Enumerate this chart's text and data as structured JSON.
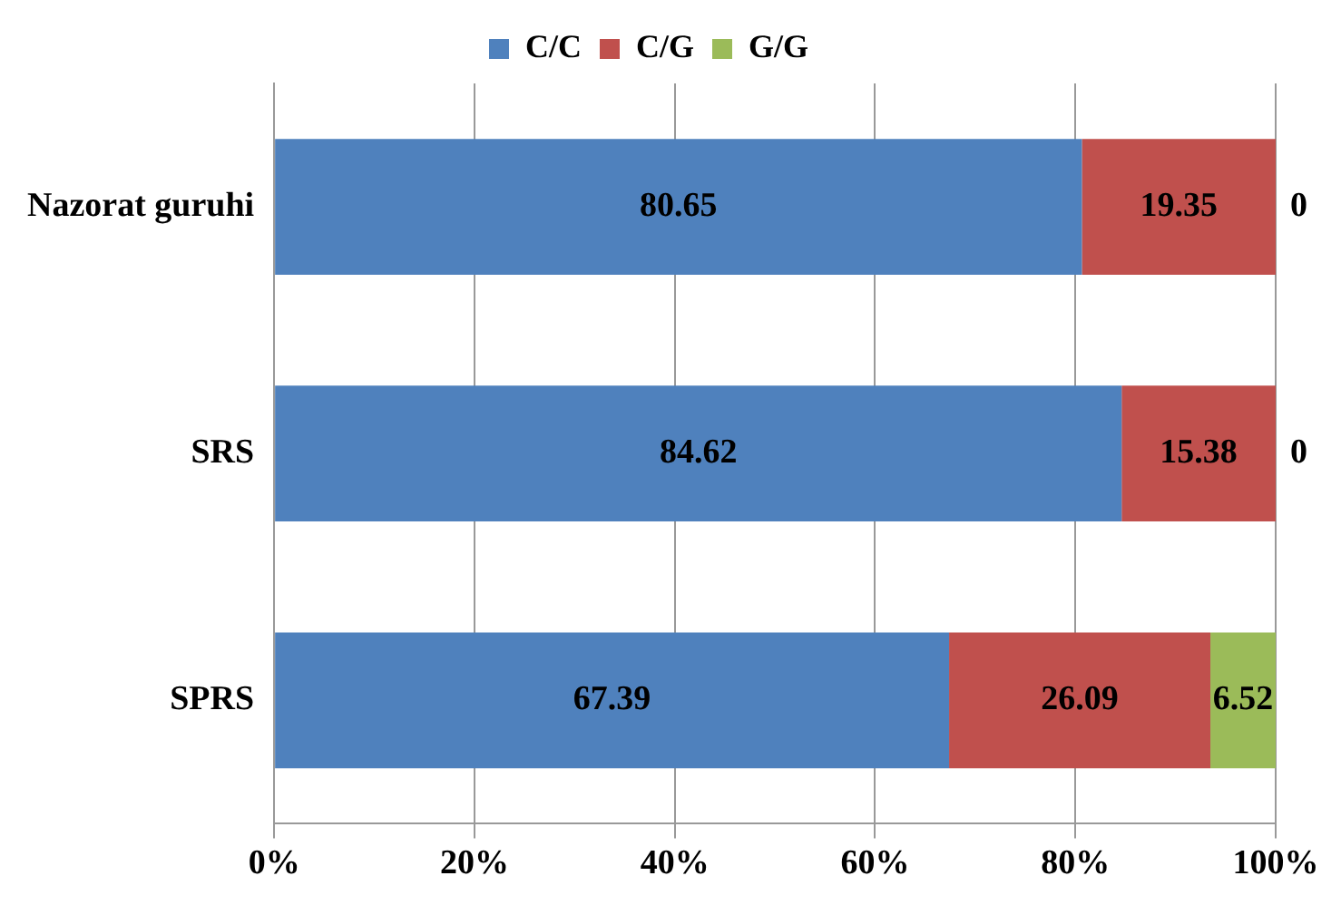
{
  "chart_data": {
    "type": "bar",
    "orientation": "horizontal",
    "stacked": true,
    "categories": [
      "Nazorat guruhi",
      "SRS",
      "SPRS"
    ],
    "series": [
      {
        "name": "C/C",
        "color": "#4f81bd",
        "values": [
          80.65,
          84.62,
          67.39
        ]
      },
      {
        "name": "C/G",
        "color": "#c0504d",
        "values": [
          19.35,
          15.38,
          26.09
        ]
      },
      {
        "name": "G/G",
        "color": "#9bbb59",
        "values": [
          0,
          0,
          6.52
        ]
      }
    ],
    "xlim": [
      0,
      100
    ],
    "xticks": [
      {
        "value": 0,
        "label": "0%"
      },
      {
        "value": 20,
        "label": "20%"
      },
      {
        "value": 40,
        "label": "40%"
      },
      {
        "value": 60,
        "label": "60%"
      },
      {
        "value": 80,
        "label": "80%"
      },
      {
        "value": 100,
        "label": "100%"
      }
    ],
    "grid": "x",
    "legend": "top",
    "data_labels": true
  }
}
